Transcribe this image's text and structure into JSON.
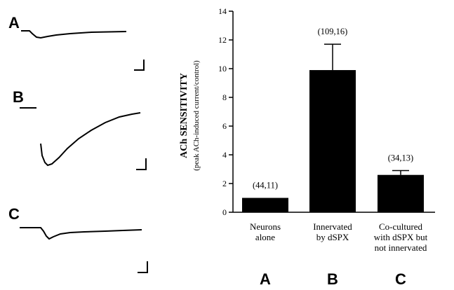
{
  "traces": [
    {
      "letter": "A"
    },
    {
      "letter": "B"
    },
    {
      "letter": "C"
    }
  ],
  "chart_data": {
    "type": "bar",
    "ylabel": "ACh SENSITIVITY",
    "ylabel_sub": "(peak ACh-induced current/control)",
    "ylim": [
      0,
      14
    ],
    "yticks": [
      0,
      2,
      4,
      6,
      8,
      10,
      12,
      14
    ],
    "categories": [
      {
        "lines": [
          "Neurons",
          "alone"
        ],
        "letter": "A"
      },
      {
        "lines": [
          "Innervated",
          "by dSPX"
        ],
        "letter": "B"
      },
      {
        "lines": [
          "Co-cultured",
          "with dSPX but",
          "not innervated"
        ],
        "letter": "C"
      }
    ],
    "values": [
      1.0,
      9.9,
      2.6
    ],
    "errors": [
      0,
      1.8,
      0.3
    ],
    "n_labels": [
      "(44,11)",
      "(109,16)",
      "(34,13)"
    ],
    "bar_color": "#000000"
  }
}
